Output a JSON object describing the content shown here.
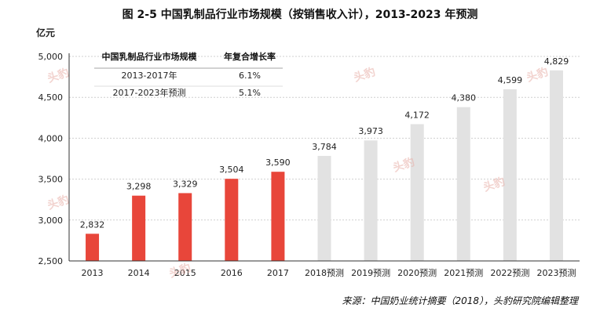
{
  "title": "图  2-5  中国乳制品行业市场规模（按销售收入计），2013-2023 年预测",
  "source": "来源：中国奶业统计摘要（2018），头豹研究院编辑整理",
  "watermark": "头豹",
  "colors": {
    "actual": "#e8463a",
    "forecast": "#e2e2e2",
    "axis": "#333333",
    "grid": "#cfcfcf"
  },
  "inset_table": {
    "headers": [
      "中国乳制品行业市场规模",
      "年复合增长率"
    ],
    "rows": [
      [
        "2013-2017年",
        "6.1%"
      ],
      [
        "2017-2023年预测",
        "5.1%"
      ]
    ]
  },
  "chart_data": {
    "type": "bar",
    "title": "图  2-5  中国乳制品行业市场规模（按销售收入计），2013-2023 年预测",
    "ylabel": "亿元",
    "xlabel": "",
    "ylim": [
      2500,
      5000
    ],
    "yticks": [
      2500,
      3000,
      3500,
      4000,
      4500,
      5000
    ],
    "ytick_labels": [
      "2,500",
      "3,000",
      "3,500",
      "4,000",
      "4,500",
      "5,000"
    ],
    "grid": true,
    "legend": "none",
    "categories": [
      "2013",
      "2014",
      "2015",
      "2016",
      "2017",
      "2018预测",
      "2019预测",
      "2020预测",
      "2021预测",
      "2022预测",
      "2023预测"
    ],
    "values": [
      2832,
      3298,
      3329,
      3504,
      3590,
      3784,
      3973,
      4172,
      4380,
      4599,
      4829
    ],
    "value_labels": [
      "2,832",
      "3,298",
      "3,329",
      "3,504",
      "3,590",
      "3,784",
      "3,973",
      "4,172",
      "4,380",
      "4,599",
      "4,829"
    ],
    "forecast": [
      false,
      false,
      false,
      false,
      false,
      true,
      true,
      true,
      true,
      true,
      true
    ]
  }
}
